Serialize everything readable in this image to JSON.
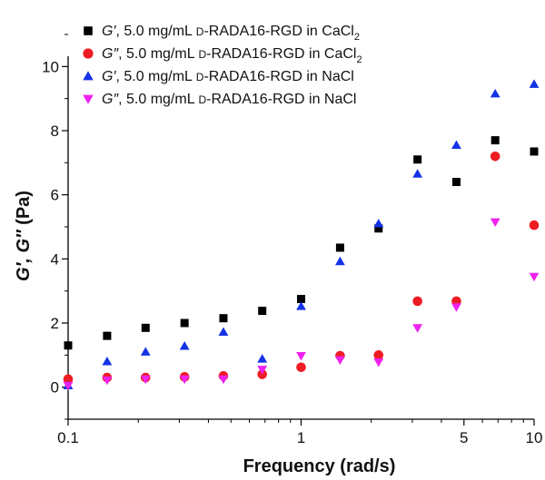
{
  "chart_data": {
    "type": "scatter",
    "title": "",
    "xlabel": "Frequency (rad/s)",
    "ylabel": "G′, G″ (Pa)",
    "x_scale": "log",
    "xlim": [
      0.1,
      10
    ],
    "ylim": [
      -1,
      11
    ],
    "x_ticks": [
      {
        "value": 0.1,
        "label": "0.1"
      },
      {
        "value": 1,
        "label": "1"
      },
      {
        "value": 5,
        "label": "5"
      },
      {
        "value": 10,
        "label": "10"
      }
    ],
    "y_ticks": [
      {
        "value": 0,
        "label": "0"
      },
      {
        "value": 2,
        "label": "2"
      },
      {
        "value": 4,
        "label": "4"
      },
      {
        "value": 6,
        "label": "6"
      },
      {
        "value": 8,
        "label": "8"
      },
      {
        "value": 10,
        "label": "10"
      }
    ],
    "legend_position": "top",
    "grid": false,
    "series": [
      {
        "name": "G′, 5.0 mg/mL D-RADA16-RGD in CaCl2",
        "legend": {
          "modulus": "G′",
          "conc": ", 5.0 mg/mL ",
          "prefix": "D",
          "peptide": "-RADA16-RGD in ",
          "salt": "CaCl",
          "subscript": "2"
        },
        "marker": "square",
        "color": "#000000",
        "x": [
          0.1,
          0.147,
          0.215,
          0.316,
          0.464,
          0.681,
          1.0,
          1.47,
          2.15,
          3.16,
          4.64,
          6.81,
          10.0
        ],
        "y": [
          1.3,
          1.6,
          1.85,
          2.0,
          2.15,
          2.38,
          2.75,
          4.35,
          4.95,
          7.1,
          6.4,
          7.7,
          7.35
        ]
      },
      {
        "name": "G″, 5.0 mg/mL D-RADA16-RGD in CaCl2",
        "legend": {
          "modulus": "G″",
          "conc": ", 5.0 mg/mL ",
          "prefix": "D",
          "peptide": "-RADA16-RGD in ",
          "salt": "CaCl",
          "subscript": "2"
        },
        "marker": "circle",
        "color": "#ee1c24",
        "x": [
          0.1,
          0.147,
          0.215,
          0.316,
          0.464,
          0.681,
          1.0,
          1.47,
          2.15,
          3.16,
          4.64,
          6.81,
          10.0
        ],
        "y": [
          0.25,
          0.3,
          0.3,
          0.32,
          0.35,
          0.4,
          0.62,
          0.98,
          1.0,
          2.68,
          2.68,
          7.2,
          5.05
        ]
      },
      {
        "name": "G′, 5.0 mg/mL D-RADA16-RGD in NaCl",
        "legend": {
          "modulus": "G′",
          "conc": ", 5.0 mg/mL ",
          "prefix": "D",
          "peptide": "-RADA16-RGD in ",
          "salt": "NaCl",
          "subscript": ""
        },
        "marker": "triangle-up",
        "color": "#1432e6",
        "x": [
          0.1,
          0.147,
          0.215,
          0.316,
          0.464,
          0.681,
          1.0,
          1.47,
          2.15,
          3.16,
          4.64,
          6.81,
          10.0
        ],
        "y": [
          0.05,
          0.8,
          1.1,
          1.28,
          1.72,
          0.88,
          2.52,
          3.92,
          5.1,
          6.65,
          7.55,
          9.15,
          9.45
        ]
      },
      {
        "name": "G″, 5.0 mg/mL D-RADA16-RGD in NaCl",
        "legend": {
          "modulus": "G″",
          "conc": ", 5.0 mg/mL ",
          "prefix": "D",
          "peptide": "-RADA16-RGD in ",
          "salt": "NaCl",
          "subscript": ""
        },
        "marker": "triangle-down",
        "color": "#ee22ee",
        "x": [
          0.1,
          0.147,
          0.215,
          0.316,
          0.464,
          0.681,
          1.0,
          1.47,
          2.15,
          3.16,
          4.64,
          6.81,
          10.0
        ],
        "y": [
          0.05,
          0.22,
          0.25,
          0.25,
          0.25,
          0.55,
          0.98,
          0.85,
          0.78,
          1.85,
          2.5,
          5.15,
          3.45
        ]
      }
    ]
  }
}
